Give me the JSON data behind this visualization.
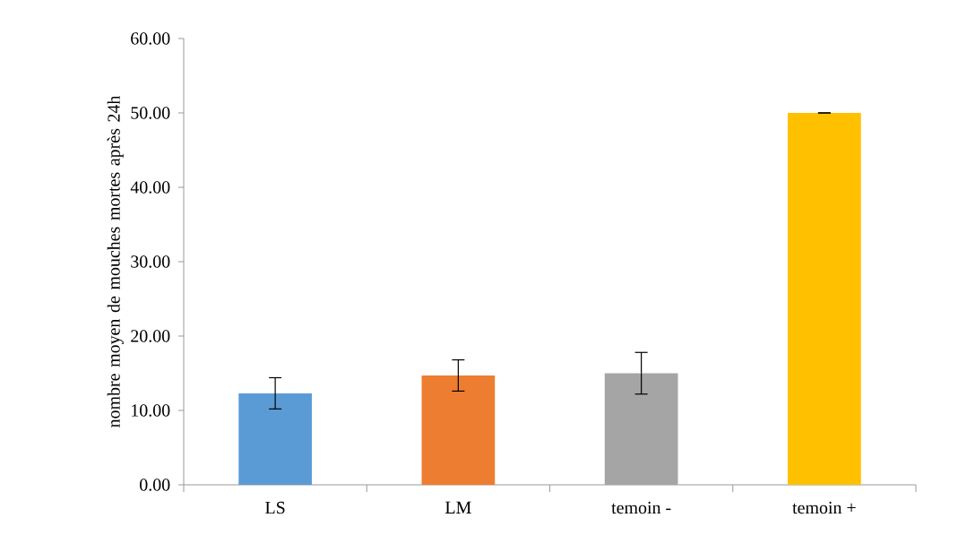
{
  "chart_data": {
    "type": "bar",
    "ylabel": "nombre moyen de mouches mortes après 24h",
    "categories": [
      "LS",
      "LM",
      "temoin -",
      "temoin +"
    ],
    "values": [
      12.3,
      14.7,
      15.0,
      50.0
    ],
    "errors": [
      2.1,
      2.1,
      2.8,
      0
    ],
    "colors": [
      "#5b9bd5",
      "#ed7d31",
      "#a5a5a5",
      "#ffc000"
    ],
    "ylim": [
      0,
      60
    ],
    "yticks": [
      {
        "value": 0,
        "label": "0.00"
      },
      {
        "value": 10,
        "label": "10.00"
      },
      {
        "value": 20,
        "label": "20.00"
      },
      {
        "value": 30,
        "label": "30.00"
      },
      {
        "value": 40,
        "label": "40.00"
      },
      {
        "value": 50,
        "label": "50.00"
      },
      {
        "value": 60,
        "label": "60.00"
      }
    ],
    "grid": false
  }
}
